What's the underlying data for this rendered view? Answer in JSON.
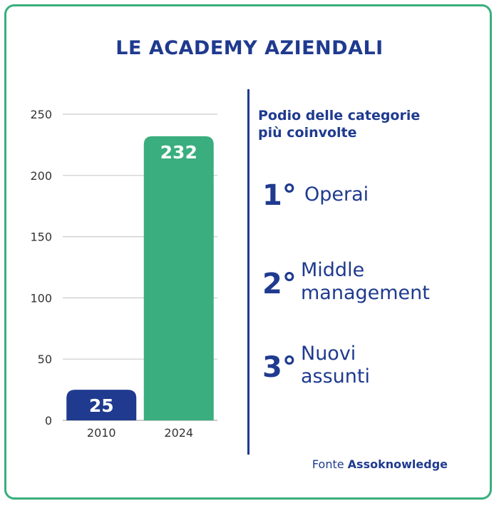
{
  "title": "LE ACADEMY AZIENDALI",
  "podium": {
    "heading_line1": "Podio delle categorie",
    "heading_line2": "più coinvolte",
    "items": [
      {
        "rank": "1°",
        "line1": "Operai",
        "line2": ""
      },
      {
        "rank": "2°",
        "line1": "Middle",
        "line2": "management"
      },
      {
        "rank": "3°",
        "line1": "Nuovi",
        "line2": "assunti"
      }
    ]
  },
  "source": {
    "prefix": "Fonte",
    "name": "Assoknowledge"
  },
  "chart_data": {
    "type": "bar",
    "title": "",
    "xlabel": "",
    "ylabel": "",
    "categories": [
      "2010",
      "2024"
    ],
    "values": [
      25,
      232
    ],
    "data_labels": [
      "25",
      "232"
    ],
    "ylim": [
      0,
      250
    ],
    "yticks": [
      0,
      50,
      100,
      150,
      200,
      250
    ],
    "bar_colors": [
      "#1f3a8f",
      "#3aae7e"
    ],
    "grid": true,
    "legend": "none"
  },
  "colors": {
    "navy": "#1f3a8f",
    "green": "#3aae7e",
    "grid": "#cccccc",
    "axis_text": "#333333"
  }
}
